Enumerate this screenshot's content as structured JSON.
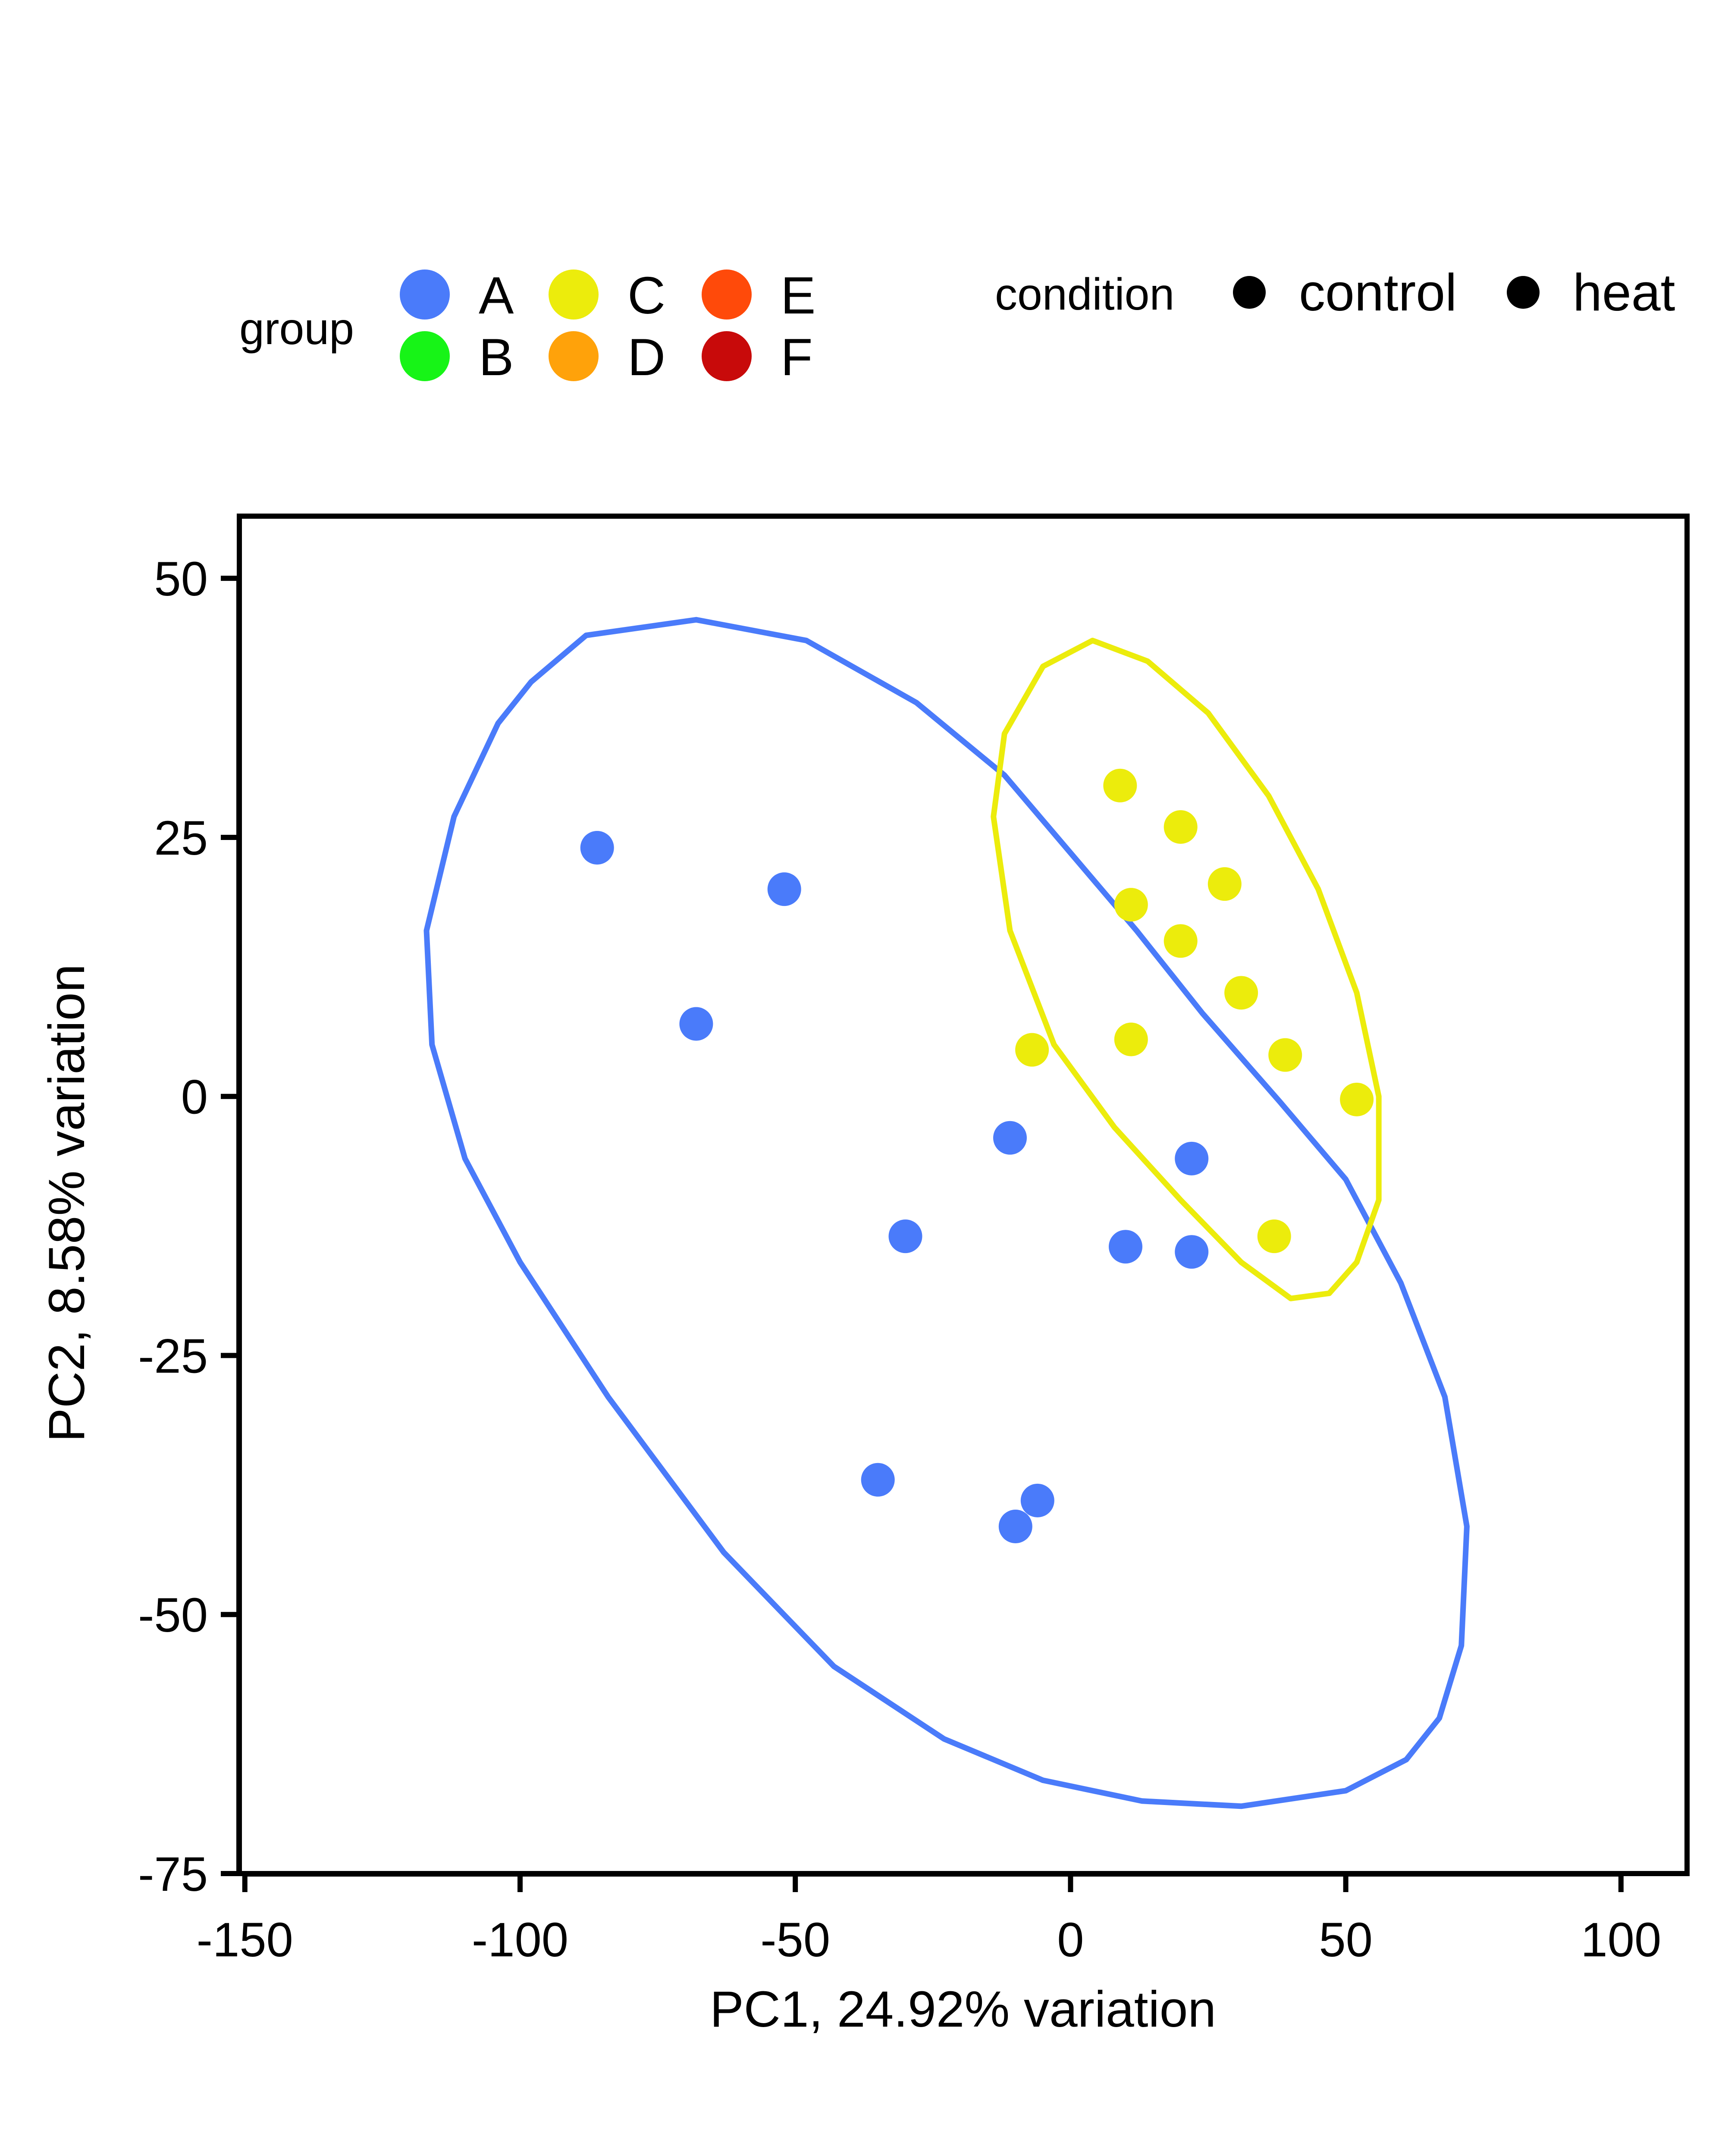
{
  "chart_data": {
    "type": "scatter",
    "title": "",
    "xlabel": "PC1, 24.92% variation",
    "ylabel": "PC2, 8.58% variation",
    "xlim": [
      -151,
      112
    ],
    "ylim": [
      -75,
      56
    ],
    "xticks": [
      -150,
      -100,
      -50,
      0,
      50,
      100
    ],
    "yticks": [
      50,
      25,
      0,
      -25,
      -50,
      -75
    ],
    "xtick_labels": [
      "-150",
      "-100",
      "-50",
      "0",
      "50",
      "100"
    ],
    "ytick_labels": [
      "50",
      "25",
      "0",
      "-25",
      "-50",
      "-75"
    ],
    "grid": false,
    "legend": {
      "placement": "top",
      "group_title": "group",
      "groups": [
        {
          "name": "A",
          "color": "#4a7bfa"
        },
        {
          "name": "B",
          "color": "#17f417"
        },
        {
          "name": "C",
          "color": "#ecec0c"
        },
        {
          "name": "D",
          "color": "#ffa20a"
        },
        {
          "name": "E",
          "color": "#ff4a0a"
        },
        {
          "name": "F",
          "color": "#c80a0a"
        }
      ],
      "condition_title": "condition",
      "conditions": [
        {
          "name": "control",
          "color": "#000000"
        },
        {
          "name": "heat",
          "color": "#000000"
        }
      ]
    },
    "series": [
      {
        "name": "A",
        "color": "#4a7bfa",
        "points": [
          [
            -86,
            24
          ],
          [
            -52,
            20
          ],
          [
            -68,
            7
          ],
          [
            -11,
            -4
          ],
          [
            22,
            -6
          ],
          [
            -30,
            -13.5
          ],
          [
            10,
            -14.5
          ],
          [
            22,
            -15
          ],
          [
            -35,
            -37
          ],
          [
            -6,
            -39
          ],
          [
            -10,
            -41.5
          ]
        ]
      },
      {
        "name": "C",
        "color": "#ecec0c",
        "points": [
          [
            9,
            30
          ],
          [
            20,
            26
          ],
          [
            28,
            20.5
          ],
          [
            11,
            18.5
          ],
          [
            20,
            15
          ],
          [
            31,
            10
          ],
          [
            -7,
            4.5
          ],
          [
            11,
            5.5
          ],
          [
            39,
            4
          ],
          [
            52,
            -0.3
          ],
          [
            37,
            -13.5
          ]
        ]
      }
    ],
    "ellipses": [
      {
        "group": "A",
        "color": "#4a7bfa",
        "outline": [
          [
            -88,
            44.5
          ],
          [
            -68,
            46
          ],
          [
            -48,
            44
          ],
          [
            -28,
            38
          ],
          [
            -12,
            31
          ],
          [
            0,
            23.5
          ],
          [
            12,
            16
          ],
          [
            24,
            8
          ],
          [
            38,
            -0.5
          ],
          [
            50,
            -8
          ],
          [
            60,
            -18
          ],
          [
            68,
            -29
          ],
          [
            72,
            -41.5
          ],
          [
            71,
            -53
          ],
          [
            67,
            -60
          ],
          [
            61,
            -64
          ],
          [
            50,
            -67
          ],
          [
            31,
            -68.5
          ],
          [
            13,
            -68
          ],
          [
            -5,
            -66
          ],
          [
            -23,
            -62
          ],
          [
            -43,
            -55
          ],
          [
            -63,
            -44
          ],
          [
            -84,
            -29
          ],
          [
            -100,
            -16
          ],
          [
            -110,
            -6
          ],
          [
            -116,
            5
          ],
          [
            -117,
            16
          ],
          [
            -112,
            27
          ],
          [
            -104,
            36
          ],
          [
            -98,
            40
          ]
        ]
      },
      {
        "group": "C",
        "color": "#ecec0c",
        "outline": [
          [
            4,
            44
          ],
          [
            14,
            42
          ],
          [
            25,
            37
          ],
          [
            36,
            29
          ],
          [
            45,
            20
          ],
          [
            52,
            10
          ],
          [
            56,
            0
          ],
          [
            56,
            -10
          ],
          [
            52,
            -16
          ],
          [
            47,
            -19
          ],
          [
            40,
            -19.5
          ],
          [
            31,
            -16
          ],
          [
            20,
            -10
          ],
          [
            8,
            -3
          ],
          [
            -3,
            5
          ],
          [
            -11,
            16
          ],
          [
            -14,
            27
          ],
          [
            -12,
            35
          ],
          [
            -5,
            41.5
          ]
        ]
      }
    ]
  }
}
